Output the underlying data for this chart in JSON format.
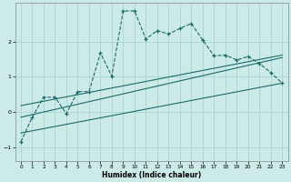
{
  "title": "",
  "xlabel": "Humidex (Indice chaleur)",
  "bg_color": "#cceae8",
  "line_color": "#1a6b6b",
  "grid_color": "#aad4d0",
  "xlim": [
    -0.5,
    23.5
  ],
  "ylim": [
    -1.4,
    3.1
  ],
  "xticks": [
    0,
    1,
    2,
    3,
    4,
    5,
    6,
    7,
    8,
    9,
    10,
    11,
    12,
    13,
    14,
    15,
    16,
    17,
    18,
    19,
    20,
    21,
    22,
    23
  ],
  "yticks": [
    -1,
    0,
    1,
    2
  ],
  "main_x": [
    0,
    1,
    2,
    3,
    4,
    5,
    6,
    7,
    8,
    9,
    10,
    11,
    12,
    13,
    14,
    15,
    16,
    17,
    18,
    19,
    20,
    21,
    22,
    23
  ],
  "main_y": [
    -0.85,
    -0.15,
    0.42,
    0.42,
    -0.05,
    0.58,
    0.58,
    1.68,
    1.02,
    2.88,
    2.88,
    2.08,
    2.32,
    2.22,
    2.38,
    2.52,
    2.05,
    1.6,
    1.62,
    1.48,
    1.58,
    1.38,
    1.12,
    0.82
  ],
  "line1_x": [
    0,
    23
  ],
  "line1_y": [
    -0.6,
    0.82
  ],
  "line2_x": [
    0,
    23
  ],
  "line2_y": [
    -0.15,
    1.55
  ],
  "line3_x": [
    0,
    23
  ],
  "line3_y": [
    0.18,
    1.62
  ]
}
